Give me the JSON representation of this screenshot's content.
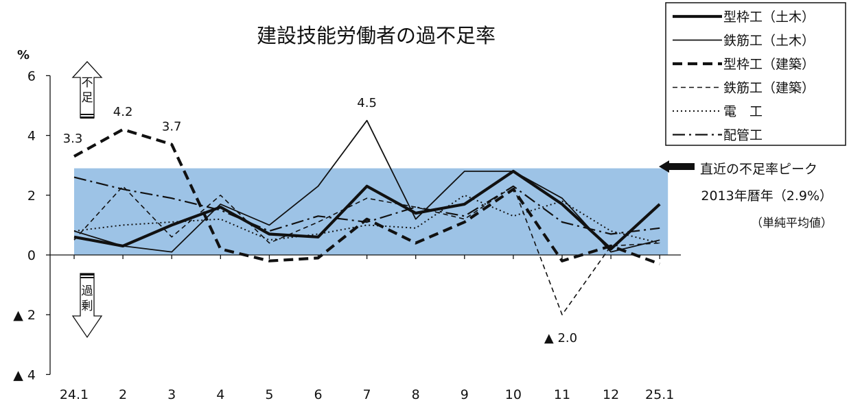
{
  "chart_data": {
    "type": "line",
    "title": "建設技能労働者の過不足率",
    "ylabel": "%",
    "categories": [
      "24.1",
      "2",
      "3",
      "4",
      "5",
      "6",
      "7",
      "8",
      "9",
      "10",
      "11",
      "12",
      "25.1"
    ],
    "y_ticks": [
      {
        "value": 6,
        "label": "6"
      },
      {
        "value": 4,
        "label": "4"
      },
      {
        "value": 2,
        "label": "2"
      },
      {
        "value": 0,
        "label": "0"
      },
      {
        "value": -2,
        "label": "▲ 2"
      },
      {
        "value": -4,
        "label": "▲ 4"
      }
    ],
    "ylim": [
      -4,
      6
    ],
    "grid": false,
    "legend_position": "top-right",
    "series": [
      {
        "name": "型枠工（土木）",
        "style": "thick-solid",
        "values": [
          0.6,
          0.3,
          1.0,
          1.6,
          0.7,
          0.6,
          2.3,
          1.4,
          1.7,
          2.8,
          1.7,
          0.2,
          1.7
        ]
      },
      {
        "name": "鉄筋工（土木）",
        "style": "thin-solid",
        "values": [
          0.8,
          0.3,
          0.1,
          1.7,
          1.0,
          2.3,
          4.5,
          1.2,
          2.8,
          2.8,
          1.9,
          0.1,
          0.5
        ]
      },
      {
        "name": "型枠工（建築）",
        "style": "thick-dashed",
        "values": [
          3.3,
          4.2,
          3.7,
          0.2,
          -0.2,
          -0.1,
          1.2,
          0.4,
          1.1,
          2.2,
          -0.2,
          0.3,
          -0.3
        ]
      },
      {
        "name": "鉄筋工（建築）",
        "style": "thin-dashed",
        "values": [
          0.5,
          2.3,
          0.6,
          2.0,
          0.4,
          1.1,
          1.9,
          1.6,
          1.2,
          2.3,
          -2.0,
          0.3,
          0.4
        ]
      },
      {
        "name": "電　工",
        "style": "dotted",
        "values": [
          0.8,
          1.0,
          1.1,
          1.2,
          0.5,
          0.7,
          1.0,
          0.9,
          2.0,
          1.3,
          1.8,
          0.8,
          0.4
        ]
      },
      {
        "name": "配管工",
        "style": "dash-dot",
        "values": [
          2.6,
          2.2,
          1.9,
          1.5,
          0.8,
          1.3,
          1.1,
          1.6,
          1.3,
          2.3,
          1.1,
          0.7,
          0.9
        ]
      }
    ],
    "data_labels": [
      {
        "series": 2,
        "index": 0,
        "text": "3.3",
        "position": "above-left"
      },
      {
        "series": 2,
        "index": 1,
        "text": "4.2",
        "position": "above"
      },
      {
        "series": 2,
        "index": 2,
        "text": "3.7",
        "position": "above"
      },
      {
        "series": 1,
        "index": 6,
        "text": "4.5",
        "position": "above"
      },
      {
        "series": 3,
        "index": 10,
        "text": "▲ 2.0",
        "position": "below"
      }
    ],
    "band": {
      "value": 2.9,
      "label": "直近の不足率ピーク",
      "sublabel": "2013年暦年（2.9%）",
      "note": "（単純平均値）",
      "color": "#9dc3e6"
    },
    "shortage_label": "不足",
    "surplus_label": "過剰"
  }
}
